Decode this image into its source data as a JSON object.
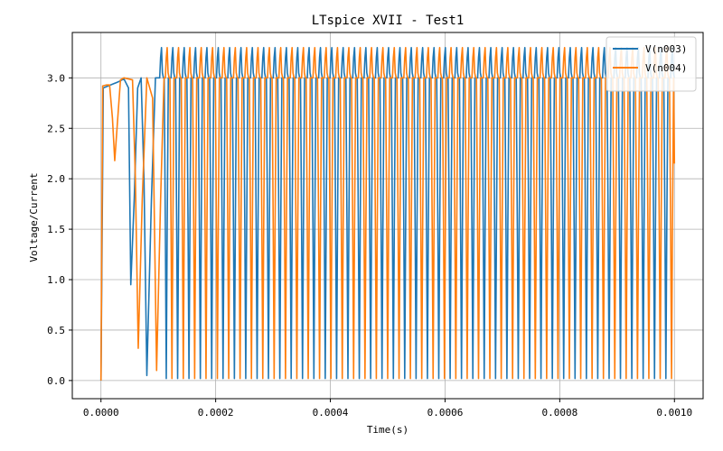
{
  "chart_data": {
    "type": "line",
    "title": "LTspice XVII - Test1",
    "xlabel": "Time(s)",
    "ylabel": "Voltage/Current",
    "xlim": [
      -5e-05,
      0.00105
    ],
    "ylim": [
      -0.18,
      3.45
    ],
    "xticks": [
      0.0,
      0.0002,
      0.0004,
      0.0006,
      0.0008,
      0.001
    ],
    "xtick_labels": [
      "0.0000",
      "0.0002",
      "0.0004",
      "0.0006",
      "0.0008",
      "0.0010"
    ],
    "yticks": [
      0.0,
      0.5,
      1.0,
      1.5,
      2.0,
      2.5,
      3.0
    ],
    "ytick_labels": [
      "0.0",
      "0.5",
      "1.0",
      "1.5",
      "2.0",
      "2.5",
      "3.0"
    ],
    "grid": true,
    "legend_position": "top-right",
    "oscillation": {
      "start_time": 0.0001,
      "period": 1.98e-05,
      "v_low": 0.02,
      "v_high": 3.3,
      "v_plateau": 3.0
    },
    "series": [
      {
        "name": "V(n003)",
        "color": "#1f77b4",
        "phase_offset": 0.0,
        "startup": [
          [
            0.0,
            0.0
          ],
          [
            4e-06,
            2.9
          ],
          [
            3e-05,
            2.96
          ],
          [
            4e-05,
            2.99
          ],
          [
            4.8e-05,
            2.9
          ],
          [
            5.2e-05,
            0.95
          ],
          [
            5.8e-05,
            1.8
          ],
          [
            6.4e-05,
            2.9
          ],
          [
            7e-05,
            3.0
          ],
          [
            7.5e-05,
            2.0
          ],
          [
            8e-05,
            0.05
          ],
          [
            8.8e-05,
            1.8
          ],
          [
            9.5e-05,
            3.0
          ],
          [
            0.0001,
            3.0
          ]
        ],
        "end": [
          [
            0.001,
            3.0
          ]
        ]
      },
      {
        "name": "V(n004)",
        "color": "#ff7f0e",
        "phase_offset": 9.9e-06,
        "startup": [
          [
            0.0,
            0.0
          ],
          [
            3e-06,
            2.92
          ],
          [
            1e-05,
            2.93
          ],
          [
            1.5e-05,
            2.93
          ],
          [
            2e-05,
            2.6
          ],
          [
            2.4e-05,
            2.18
          ],
          [
            2.8e-05,
            2.5
          ],
          [
            3.4e-05,
            2.98
          ],
          [
            4e-05,
            3.0
          ],
          [
            5.5e-05,
            2.98
          ],
          [
            6e-05,
            2.0
          ],
          [
            6.5e-05,
            0.32
          ],
          [
            7.2e-05,
            1.8
          ],
          [
            8e-05,
            3.0
          ],
          [
            9e-05,
            2.8
          ],
          [
            9.7e-05,
            0.1
          ],
          [
            0.000104,
            1.8
          ],
          [
            0.00011,
            3.0
          ]
        ],
        "end": [
          [
            0.001,
            2.15
          ]
        ]
      }
    ]
  }
}
